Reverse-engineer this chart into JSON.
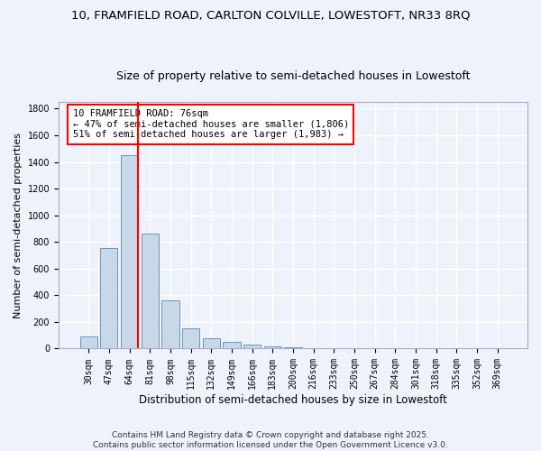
{
  "title1": "10, FRAMFIELD ROAD, CARLTON COLVILLE, LOWESTOFT, NR33 8RQ",
  "title2": "Size of property relative to semi-detached houses in Lowestoft",
  "xlabel": "Distribution of semi-detached houses by size in Lowestoft",
  "ylabel": "Number of semi-detached properties",
  "categories": [
    "30sqm",
    "47sqm",
    "64sqm",
    "81sqm",
    "98sqm",
    "115sqm",
    "132sqm",
    "149sqm",
    "166sqm",
    "183sqm",
    "200sqm",
    "216sqm",
    "233sqm",
    "250sqm",
    "267sqm",
    "284sqm",
    "301sqm",
    "318sqm",
    "335sqm",
    "352sqm",
    "369sqm"
  ],
  "values": [
    90,
    755,
    1450,
    865,
    360,
    155,
    75,
    48,
    27,
    15,
    8,
    5,
    3,
    2,
    1,
    1,
    0,
    0,
    0,
    0,
    0
  ],
  "bar_color": "#c8d8e8",
  "bar_edge_color": "#6699bb",
  "vline_color": "red",
  "vline_pos": 2.4,
  "annotation_title": "10 FRAMFIELD ROAD: 76sqm",
  "annotation_line1": "← 47% of semi-detached houses are smaller (1,806)",
  "annotation_line2": "51% of semi-detached houses are larger (1,983) →",
  "annotation_box_color": "red",
  "footer1": "Contains HM Land Registry data © Crown copyright and database right 2025.",
  "footer2": "Contains public sector information licensed under the Open Government Licence v3.0.",
  "ylim": [
    0,
    1850
  ],
  "yticks": [
    0,
    200,
    400,
    600,
    800,
    1000,
    1200,
    1400,
    1600,
    1800
  ],
  "bg_color": "#eef2fb",
  "grid_color": "#ffffff",
  "title1_fontsize": 9.5,
  "title2_fontsize": 9.0,
  "xlabel_fontsize": 8.5,
  "ylabel_fontsize": 8.0,
  "tick_fontsize": 7.0,
  "ann_fontsize": 7.5,
  "footer_fontsize": 6.5
}
